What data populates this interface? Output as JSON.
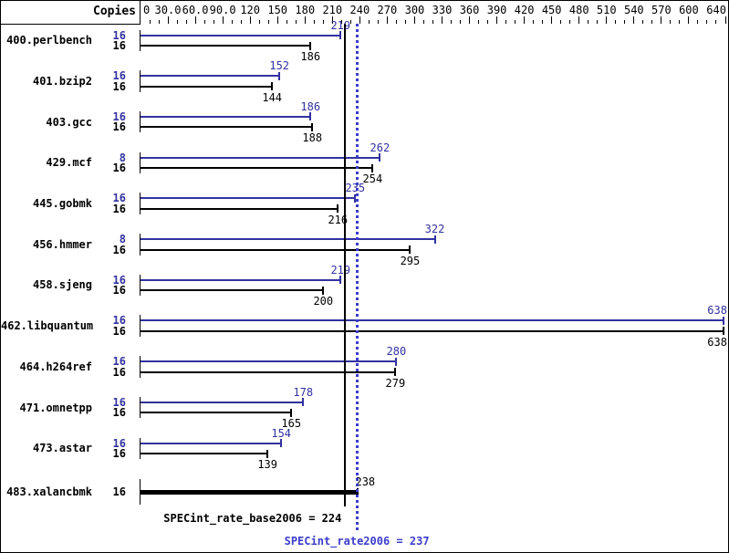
{
  "colors": {
    "peak_blue": "#3232a0",
    "dotted_blue": "#3c3ccc",
    "base_black": "#000000",
    "background": "#ffffff"
  },
  "header": {
    "copies_label": "Copies"
  },
  "chart_data": {
    "type": "bar",
    "orientation": "horizontal",
    "title": "",
    "xlabel": "",
    "ylabel": "Copies",
    "xlim": [
      0,
      640
    ],
    "axis": {
      "major_tick_labels": [
        "0",
        "30.0",
        "60.0",
        "90.0",
        "120",
        "150",
        "180",
        "210",
        "240",
        "270",
        "300",
        "330",
        "360",
        "390",
        "420",
        "450",
        "480",
        "510",
        "540",
        "570",
        "600",
        "640"
      ],
      "major_tick_values": [
        0,
        30,
        60,
        90,
        120,
        150,
        180,
        210,
        240,
        270,
        300,
        330,
        360,
        390,
        420,
        450,
        480,
        510,
        540,
        570,
        600,
        640
      ],
      "minor_tick_step": 10
    },
    "series": [
      {
        "name": "peak",
        "color_key": "peak_blue"
      },
      {
        "name": "base",
        "color_key": "base_black"
      }
    ],
    "benchmarks": [
      {
        "name": "400.perlbench",
        "peak_copies": "16",
        "peak": 219,
        "base_copies": "16",
        "base": 186
      },
      {
        "name": "401.bzip2",
        "peak_copies": "16",
        "peak": 152,
        "base_copies": "16",
        "base": 144
      },
      {
        "name": "403.gcc",
        "peak_copies": "16",
        "peak": 186,
        "base_copies": "16",
        "base": 188
      },
      {
        "name": "429.mcf",
        "peak_copies": "8",
        "peak": 262,
        "base_copies": "16",
        "base": 254
      },
      {
        "name": "445.gobmk",
        "peak_copies": "16",
        "peak": 235,
        "base_copies": "16",
        "base": 216
      },
      {
        "name": "456.hmmer",
        "peak_copies": "8",
        "peak": 322,
        "base_copies": "16",
        "base": 295
      },
      {
        "name": "458.sjeng",
        "peak_copies": "16",
        "peak": 219,
        "base_copies": "16",
        "base": 200
      },
      {
        "name": "462.libquantum",
        "peak_copies": "16",
        "peak": 638,
        "base_copies": "16",
        "base": 638
      },
      {
        "name": "464.h264ref",
        "peak_copies": "16",
        "peak": 280,
        "base_copies": "16",
        "base": 279
      },
      {
        "name": "471.omnetpp",
        "peak_copies": "16",
        "peak": 178,
        "base_copies": "16",
        "base": 165
      },
      {
        "name": "473.astar",
        "peak_copies": "16",
        "peak": 154,
        "base_copies": "16",
        "base": 139
      },
      {
        "name": "483.xalancbmk",
        "copies": "16",
        "value": 238,
        "single_bar": true
      }
    ],
    "reference_lines": [
      {
        "name": "base_mean",
        "value": 224,
        "style": "solid",
        "color_key": "base_black"
      },
      {
        "name": "peak_mean",
        "value": 237,
        "style": "dotted",
        "color_key": "dotted_blue"
      }
    ]
  },
  "footer": {
    "base_label": "SPECint_rate_base2006 = 224",
    "peak_label": "SPECint_rate2006 = 237"
  }
}
